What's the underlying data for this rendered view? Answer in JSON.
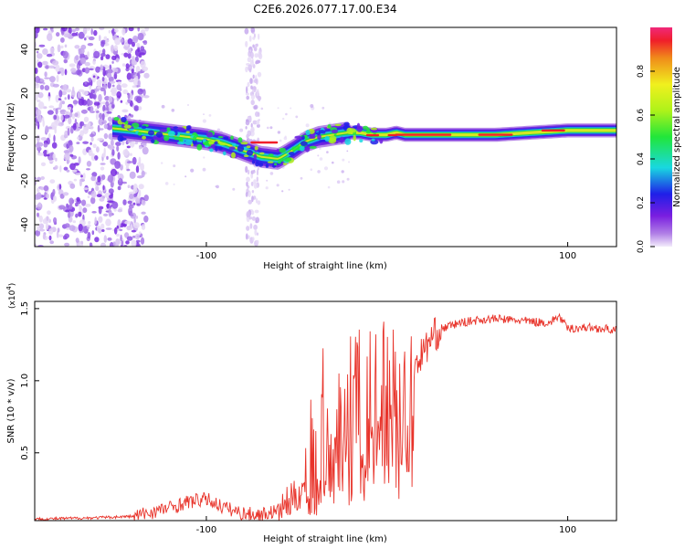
{
  "title": "C2E6.2026.077.17.00.E34",
  "chart_data": [
    {
      "type": "heatmap",
      "title": "C2E6.2026.077.17.00.E34",
      "xlabel": "Height of straight line (km)",
      "ylabel": "Frequency (Hz)",
      "xlim": [
        -195,
        127
      ],
      "ylim": [
        -50,
        50
      ],
      "x_ticks": [
        -100,
        100
      ],
      "y_ticks": [
        40,
        20,
        0,
        -20,
        -40
      ],
      "ridge": {
        "x": [
          -152,
          -140,
          -130,
          -120,
          -110,
          -100,
          -90,
          -80,
          -70,
          -60,
          -52,
          -45,
          -38,
          -30,
          -22,
          -15,
          -8,
          0,
          5,
          10,
          20,
          40,
          60,
          80,
          100,
          127
        ],
        "freq": [
          4,
          3,
          2,
          1,
          0,
          -1,
          -3,
          -6,
          -9,
          -10,
          -6,
          -2,
          0,
          1,
          2,
          2,
          1,
          1,
          2,
          1,
          1,
          1,
          1,
          2,
          3,
          3
        ]
      },
      "colorbar": {
        "label": "Normalized spectral amplitude",
        "ticks": [
          0.0,
          0.2,
          0.4,
          0.6,
          0.8
        ],
        "range": [
          0,
          1
        ]
      }
    },
    {
      "type": "line",
      "xlabel": "Height of straight line (km)",
      "ylabel": "SNR (10 * v/v)",
      "multiplier": "(x10",
      "multiplier_exp": "4",
      "multiplier_close": ")",
      "xlim": [
        -195,
        127
      ],
      "ylim": [
        0.03,
        1.55
      ],
      "x_ticks": [
        -100,
        100
      ],
      "y_ticks": [
        0.5,
        1.0,
        1.5
      ],
      "series": [
        {
          "name": "SNR",
          "color": "#e8332a",
          "x": [
            -195,
            -160,
            -140,
            -130,
            -120,
            -110,
            -100,
            -90,
            -80,
            -70,
            -60,
            -50,
            -45,
            -40,
            -35,
            -30,
            -25,
            -20,
            -15,
            -10,
            -5,
            0,
            5,
            10,
            15,
            20,
            25,
            30,
            40,
            50,
            60,
            70,
            80,
            90,
            95,
            100,
            110,
            120,
            127
          ],
          "y": [
            0.04,
            0.05,
            0.06,
            0.09,
            0.12,
            0.16,
            0.18,
            0.12,
            0.08,
            0.07,
            0.1,
            0.2,
            0.28,
            0.45,
            0.75,
            0.85,
            0.9,
            0.9,
            0.95,
            1.0,
            1.05,
            1.1,
            1.05,
            1.0,
            1.1,
            1.2,
            1.3,
            1.36,
            1.4,
            1.42,
            1.43,
            1.42,
            1.41,
            1.4,
            1.45,
            1.36,
            1.37,
            1.36,
            1.35
          ]
        }
      ]
    }
  ]
}
